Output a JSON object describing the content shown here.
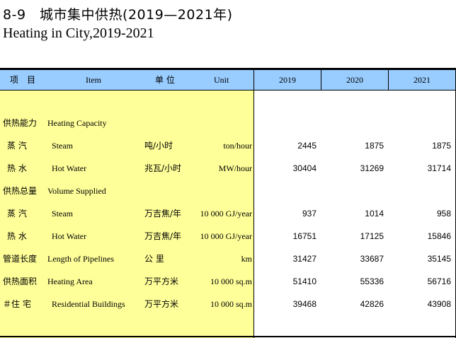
{
  "title_cn": "8-9　城市集中供热(2019—2021年)",
  "title_en": "Heating in City,2019-2021",
  "headers": {
    "item_cn": "项　目",
    "item_en": "Item",
    "unit_cn": "单 位",
    "unit_en": "Unit",
    "years": [
      "2019",
      "2020",
      "2021"
    ]
  },
  "rows": [
    {
      "cn": "供热能力",
      "en": "Heating Capacity",
      "unit_cn": "",
      "unit_en": "",
      "values": [
        "",
        "",
        ""
      ]
    },
    {
      "cn": "蒸 汽",
      "en": "Steam",
      "unit_cn": "吨/小时",
      "unit_en": "ton/hour",
      "values": [
        "2445",
        "1875",
        "1875"
      ]
    },
    {
      "cn": "热 水",
      "en": "Hot Water",
      "unit_cn": "兆瓦/小时",
      "unit_en": "MW/hour",
      "values": [
        "30404",
        "31269",
        "31714"
      ]
    },
    {
      "cn": "供热总量",
      "en": "Volume Supplied",
      "unit_cn": "",
      "unit_en": "",
      "values": [
        "",
        "",
        ""
      ]
    },
    {
      "cn": "蒸 汽",
      "en": "Steam",
      "unit_cn": "万吉焦/年",
      "unit_en": "10 000 GJ/year",
      "values": [
        "937",
        "1014",
        "958"
      ]
    },
    {
      "cn": "热 水",
      "en": "Hot Water",
      "unit_cn": "万吉焦/年",
      "unit_en": "10 000 GJ/year",
      "values": [
        "16751",
        "17125",
        "15846"
      ]
    },
    {
      "cn": "管道长度",
      "en": "Length of Pipelines",
      "unit_cn": "公 里",
      "unit_en": "km",
      "values": [
        "31427",
        "33687",
        "35145"
      ]
    },
    {
      "cn": "供热面积",
      "en": "Heating Area",
      "unit_cn": "万平方米",
      "unit_en": "10 000 sq.m",
      "values": [
        "51410",
        "55336",
        "56716"
      ]
    },
    {
      "cn": "＃住 宅",
      "en": "Residential Buildings",
      "unit_cn": "万平方米",
      "unit_en": "10 000 sq.m",
      "values": [
        "39468",
        "42826",
        "43908"
      ]
    }
  ]
}
